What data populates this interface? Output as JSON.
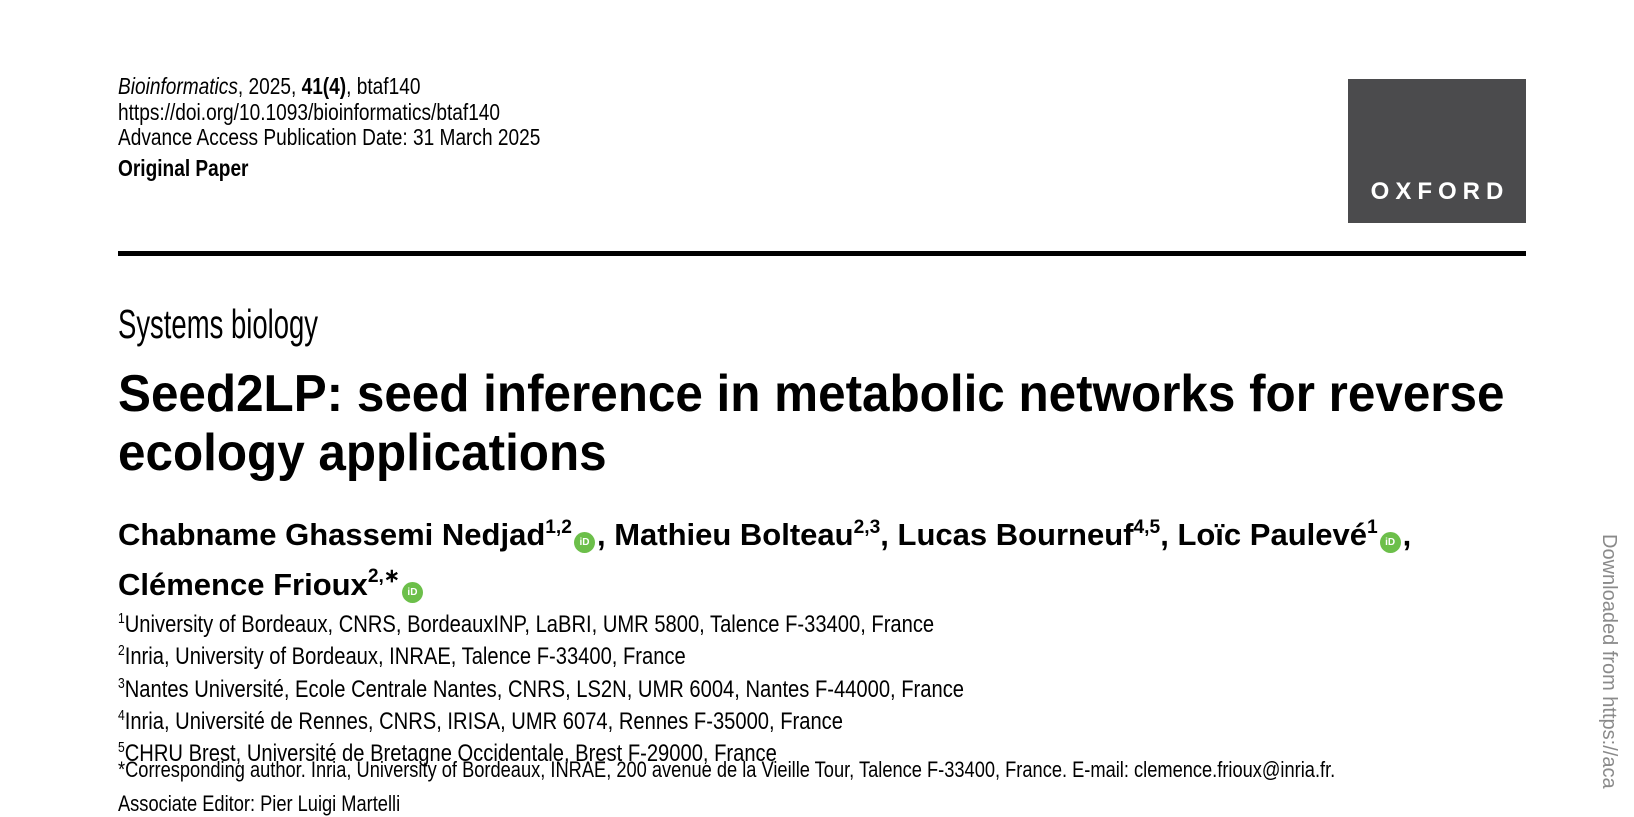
{
  "colors": {
    "orcid_green": "#6CBF4A",
    "publisher_box": "#4B4B4D",
    "watermark_gray": "#8A8A8A"
  },
  "icons": {
    "orcid_glyph": "iD"
  },
  "masthead": {
    "journal": "Bioinformatics",
    "citation_mid": ", 2025, ",
    "volume_issue": "41(4)",
    "citation_end": ", btaf140",
    "doi": "https://doi.org/10.1093/bioinformatics/btaf140",
    "advance_access": "Advance Access Publication Date: 31 March 2025",
    "paper_type": "Original Paper",
    "publisher": "OXFORD"
  },
  "article": {
    "section": "Systems biology",
    "title_line1": "Seed2LP: seed inference in metabolic networks for reverse",
    "title_line2": "ecology applications"
  },
  "authors": {
    "separator": ", ",
    "list": [
      {
        "name": "Chabname Ghassemi Nedjad",
        "affiliations": "1,2"
      },
      {
        "name": "Mathieu Bolteau",
        "affiliations": "2,3"
      },
      {
        "name": "Lucas Bourneuf",
        "affiliations": "4,5"
      },
      {
        "name": "Loïc Paulevé",
        "affiliations": "1"
      },
      {
        "name": "Clémence Frioux",
        "affiliations": "2,∗"
      }
    ]
  },
  "affiliations": [
    {
      "marker": "1",
      "text": "University of Bordeaux, CNRS, BordeauxINP, LaBRI, UMR 5800, Talence F-33400, France"
    },
    {
      "marker": "2",
      "text": "Inria, University of Bordeaux, INRAE, Talence F-33400, France"
    },
    {
      "marker": "3",
      "text": "Nantes Université, Ecole Centrale Nantes, CNRS, LS2N, UMR 6004, Nantes F-44000, France"
    },
    {
      "marker": "4",
      "text": "Inria, Université de Rennes, CNRS, IRISA, UMR 6074, Rennes F-35000, France"
    },
    {
      "marker": "5",
      "text": "CHRU Brest, Université de Bretagne Occidentale, Brest F-29000, France"
    }
  ],
  "notes": {
    "corresponding_prefix": "*Corresponding author. Inria, University of Bordeaux, INRAE, 200 avenue de la Vieille Tour, Talence F-33400, France. E-mail: ",
    "corresponding_email": "clemence.frioux@inria.fr",
    "corresponding_suffix": ".",
    "associate_editor": "Associate Editor: Pier Luigi Martelli"
  },
  "watermark": {
    "text": "Downloaded from https://aca"
  }
}
